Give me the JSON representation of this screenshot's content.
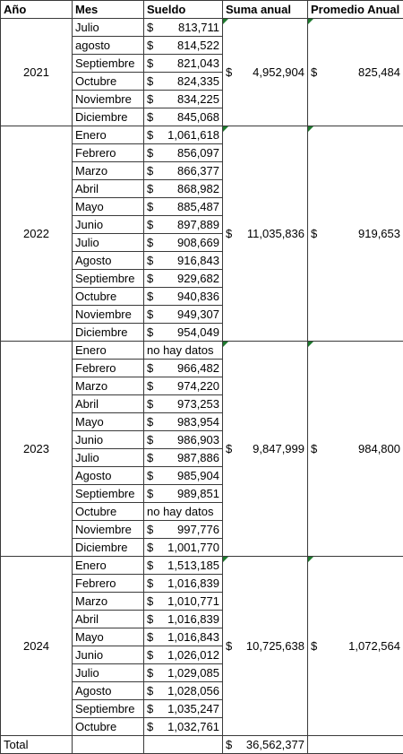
{
  "table": {
    "header": [
      "Año",
      "Mes",
      "Sueldo",
      "Suma anual",
      "Promedio Anual"
    ],
    "currency": "$",
    "groups": [
      {
        "year": "2021",
        "suma": "4,952,904",
        "promedio": "825,484",
        "months": [
          {
            "mes": "Julio",
            "sueldo": "813,711"
          },
          {
            "mes": "agosto",
            "sueldo": "814,522"
          },
          {
            "mes": "Septiembre",
            "sueldo": "821,043"
          },
          {
            "mes": "Octubre",
            "sueldo": "824,335"
          },
          {
            "mes": "Noviembre",
            "sueldo": "834,225"
          },
          {
            "mes": "Diciembre",
            "sueldo": "845,068"
          }
        ]
      },
      {
        "year": "2022",
        "suma": "11,035,836",
        "promedio": "919,653",
        "months": [
          {
            "mes": "Enero",
            "sueldo": "1,061,618"
          },
          {
            "mes": "Febrero",
            "sueldo": "856,097"
          },
          {
            "mes": "Marzo",
            "sueldo": "866,377"
          },
          {
            "mes": "Abril",
            "sueldo": "868,982"
          },
          {
            "mes": "Mayo",
            "sueldo": "885,487"
          },
          {
            "mes": "Junio",
            "sueldo": "897,889"
          },
          {
            "mes": "Julio",
            "sueldo": "908,669"
          },
          {
            "mes": "Agosto",
            "sueldo": "916,843"
          },
          {
            "mes": "Septiembre",
            "sueldo": "929,682"
          },
          {
            "mes": "Octubre",
            "sueldo": "940,836"
          },
          {
            "mes": "Noviembre",
            "sueldo": "949,307"
          },
          {
            "mes": "Diciembre",
            "sueldo": "954,049"
          }
        ]
      },
      {
        "year": "2023",
        "suma": "9,847,999",
        "promedio": "984,800",
        "months": [
          {
            "mes": "Enero",
            "nota": "no hay datos"
          },
          {
            "mes": "Febrero",
            "sueldo": "966,482"
          },
          {
            "mes": "Marzo",
            "sueldo": "974,220"
          },
          {
            "mes": "Abril",
            "sueldo": "973,253"
          },
          {
            "mes": "Mayo",
            "sueldo": "983,954"
          },
          {
            "mes": "Junio",
            "sueldo": "986,903"
          },
          {
            "mes": "Julio",
            "sueldo": "987,886"
          },
          {
            "mes": "Agosto",
            "sueldo": "985,904"
          },
          {
            "mes": "Septiembre",
            "sueldo": "989,851"
          },
          {
            "mes": "Octubre",
            "nota": "no hay datos"
          },
          {
            "mes": "Noviembre",
            "sueldo": "997,776"
          },
          {
            "mes": "Diciembre",
            "sueldo": "1,001,770"
          }
        ]
      },
      {
        "year": "2024",
        "suma": "10,725,638",
        "promedio": "1,072,564",
        "months": [
          {
            "mes": "Enero",
            "sueldo": "1,513,185"
          },
          {
            "mes": "Febrero",
            "sueldo": "1,016,839"
          },
          {
            "mes": "Marzo",
            "sueldo": "1,010,771"
          },
          {
            "mes": "Abril",
            "sueldo": "1,016,839"
          },
          {
            "mes": "Mayo",
            "sueldo": "1,016,843"
          },
          {
            "mes": "Junio",
            "sueldo": "1,026,012"
          },
          {
            "mes": "Julio",
            "sueldo": "1,029,085"
          },
          {
            "mes": "Agosto",
            "sueldo": "1,028,056"
          },
          {
            "mes": "Septiembre",
            "sueldo": "1,035,247"
          },
          {
            "mes": "Octubre",
            "sueldo": "1,032,761"
          }
        ]
      }
    ],
    "total": {
      "label": "Total",
      "value": "36,562,377"
    }
  }
}
